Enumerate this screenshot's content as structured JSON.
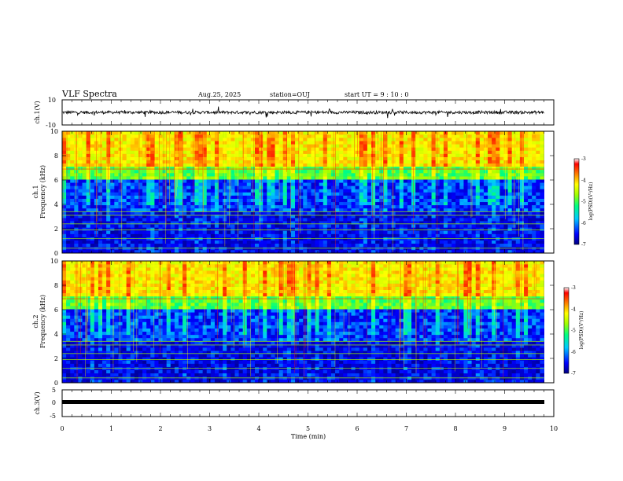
{
  "header": {
    "title": "VLF Spectra",
    "date": "Aug.25, 2025",
    "station": "station=OUJ",
    "start": "start UT =   9 : 10 : 0"
  },
  "chart_data": [
    {
      "type": "line",
      "name": "ch1-waveform",
      "ylabel": "ch.1(V)",
      "ylim": [
        -10,
        10
      ],
      "yticks": [
        "10",
        "-10"
      ],
      "xlim": [
        0,
        10
      ],
      "color": "#000000"
    },
    {
      "type": "heatmap",
      "name": "ch1-spectrogram",
      "ylabel": "ch.1\nFrequency (kHz)",
      "ylabel_lines": [
        "ch.1",
        "Frequency (kHz)"
      ],
      "ylim": [
        0,
        10
      ],
      "yticks": [
        "0",
        "2",
        "4",
        "6",
        "8",
        "10"
      ],
      "xlim": [
        0,
        9.8
      ],
      "colorbar": {
        "label": "log(PSD)(V²/Hz)",
        "range": [
          -7,
          -3
        ],
        "ticks": [
          "-3",
          "-4",
          "-5",
          "-6",
          "-7"
        ],
        "colors": [
          "#000080",
          "#0000ff",
          "#00c8ff",
          "#00ff80",
          "#a0ff00",
          "#ffff00",
          "#ff8000",
          "#ff0000",
          "#ffffff"
        ]
      }
    },
    {
      "type": "heatmap",
      "name": "ch2-spectrogram",
      "ylabel": "ch.2\nFrequency (kHz)",
      "ylabel_lines": [
        "ch.2",
        "Frequency (kHz)"
      ],
      "ylim": [
        0,
        10
      ],
      "yticks": [
        "0",
        "2",
        "4",
        "6",
        "8",
        "10"
      ],
      "xlim": [
        0,
        9.8
      ],
      "colorbar": {
        "label": "log(PSD)(V²/Hz)",
        "range": [
          -7,
          -3
        ],
        "ticks": [
          "-3",
          "-4",
          "-5",
          "-6",
          "-7"
        ],
        "colors": [
          "#000080",
          "#0000ff",
          "#00c8ff",
          "#00ff80",
          "#a0ff00",
          "#ffff00",
          "#ff8000",
          "#ff0000",
          "#ffffff"
        ]
      }
    },
    {
      "type": "line",
      "name": "ch3-waveform",
      "ylabel": "ch.3(V)",
      "ylim": [
        -5,
        5
      ],
      "yticks": [
        "5",
        "0",
        "-5"
      ],
      "xlim": [
        0,
        10
      ],
      "color": "#000000"
    }
  ],
  "x_axis": {
    "label": "Time (min)",
    "range": [
      0,
      10
    ],
    "ticks": [
      "0",
      "1",
      "2",
      "3",
      "4",
      "5",
      "6",
      "7",
      "8",
      "9",
      "10"
    ]
  }
}
